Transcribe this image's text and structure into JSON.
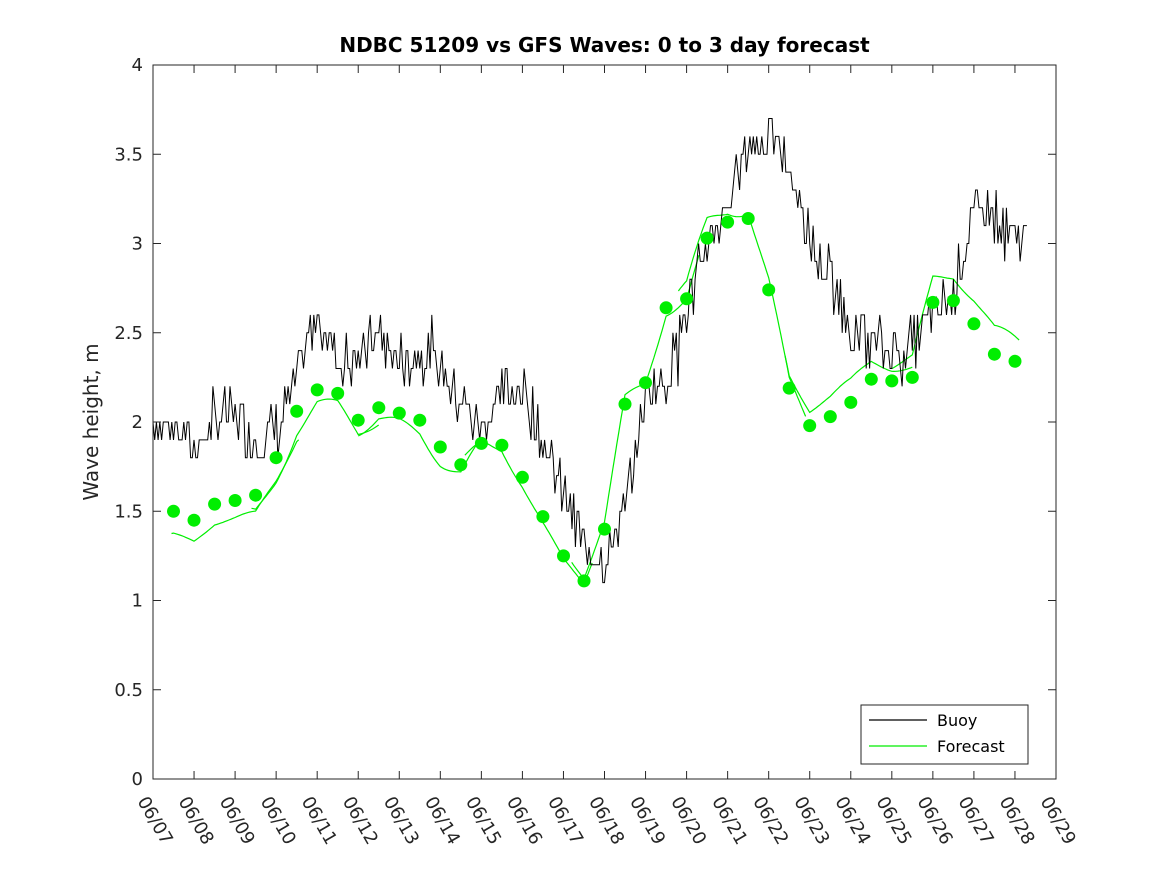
{
  "chart_data": {
    "type": "line",
    "title": "NDBC 51209 vs GFS Waves: 0 to 3 day forecast",
    "xlabel": "",
    "ylabel": "Wave height, m",
    "xlim": [
      0,
      22
    ],
    "ylim": [
      0,
      4
    ],
    "x_ticks": [
      "06/07",
      "06/08",
      "06/09",
      "06/10",
      "06/11",
      "06/12",
      "06/13",
      "06/14",
      "06/15",
      "06/16",
      "06/17",
      "06/18",
      "06/19",
      "06/20",
      "06/21",
      "06/22",
      "06/23",
      "06/24",
      "06/25",
      "06/26",
      "06/27",
      "06/28",
      "06/29"
    ],
    "y_ticks": [
      "0",
      "0.5",
      "1",
      "1.5",
      "2",
      "2.5",
      "3",
      "3.5",
      "4"
    ],
    "legend": {
      "position": "bottom-right",
      "entries": [
        "Buoy",
        "Forecast"
      ]
    },
    "colors": {
      "buoy": "#000000",
      "forecast": "#00ee00"
    },
    "series": [
      {
        "name": "Buoy",
        "x": [
          0,
          0.5,
          1,
          1.5,
          2,
          2.5,
          3,
          3.5,
          4,
          4.5,
          5,
          5.5,
          6,
          6.5,
          7,
          7.5,
          8,
          8.5,
          9,
          9.5,
          10,
          10.5,
          11,
          11.5,
          12,
          12.5,
          13,
          13.5,
          14,
          14.5,
          15,
          15.5,
          16,
          16.5,
          17,
          17.5,
          18,
          18.5,
          19,
          19.5,
          20,
          20.5,
          21,
          21.5,
          22
        ],
        "y": [
          2.0,
          2.0,
          1.85,
          2.0,
          2.05,
          1.9,
          1.95,
          2.2,
          2.65,
          2.35,
          2.35,
          2.5,
          2.35,
          2.4,
          2.3,
          2.1,
          1.95,
          2.15,
          2.2,
          1.9,
          1.6,
          1.3,
          1.25,
          1.5,
          2.15,
          2.25,
          2.6,
          3.0,
          3.2,
          3.55,
          3.6,
          3.45,
          3.0,
          2.8,
          2.55,
          2.45,
          2.4,
          2.45,
          2.6,
          2.7,
          3.2,
          3.15,
          2.95,
          3.1,
          2.9
        ]
      },
      {
        "name": "Forecast",
        "x": [
          0.5,
          1,
          1.5,
          2,
          2.5,
          3,
          3.5,
          4,
          4.5,
          5,
          5.5,
          6,
          6.5,
          7,
          7.5,
          8,
          8.5,
          9,
          9.5,
          10,
          10.5,
          11,
          11.5,
          12,
          12.5,
          13,
          13.5,
          14,
          14.5,
          15,
          15.5,
          16,
          16.5,
          17,
          17.5,
          18,
          18.5,
          19,
          19.5,
          20,
          20.5,
          21,
          21.5,
          22
        ],
        "y": [
          1.5,
          1.45,
          1.54,
          1.56,
          1.59,
          1.8,
          2.06,
          2.18,
          2.16,
          2.01,
          2.08,
          2.05,
          2.01,
          1.86,
          1.76,
          1.88,
          1.87,
          1.69,
          1.47,
          1.25,
          1.11,
          1.4,
          2.1,
          2.22,
          2.64,
          2.69,
          3.03,
          3.12,
          3.14,
          2.74,
          2.19,
          1.98,
          2.03,
          2.11,
          2.24,
          2.23,
          2.25,
          2.67,
          2.68,
          2.55,
          2.38,
          2.34,
          2.3,
          2.27
        ]
      }
    ]
  }
}
